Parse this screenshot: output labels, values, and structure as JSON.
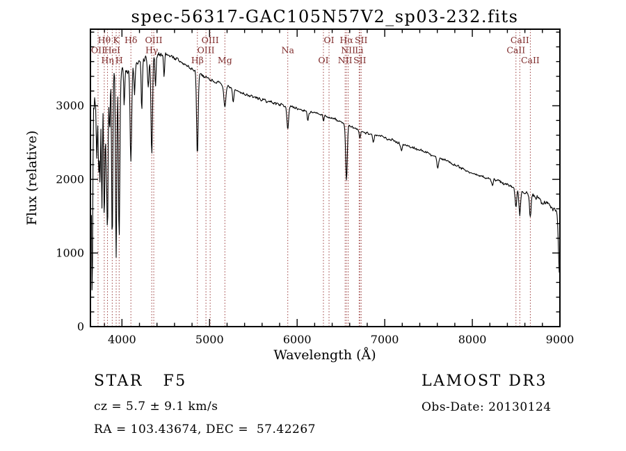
{
  "colors": {
    "background": "#ffffff",
    "spectrum": "#000000",
    "frame": "#000000",
    "text": "#000000",
    "marker_line": "#9a3b3b",
    "marker_label": "#7e2a2a"
  },
  "chart_data": {
    "type": "line",
    "title": "spec-56317-GAC105N57V2_sp03-232.fits",
    "xlabel": "Wavelength (Å)",
    "ylabel": "Flux (relative)",
    "xlim": [
      3640,
      9000
    ],
    "ylim": [
      0,
      4040
    ],
    "x_ticks": [
      4000,
      5000,
      6000,
      7000,
      8000,
      9000
    ],
    "y_ticks": [
      0,
      1000,
      2000,
      3000
    ],
    "x_minor_step": 200,
    "y_minor_step": 200,
    "grid": false,
    "sample_step": 6,
    "noise_seed": 7,
    "continuum_points": [
      [
        3650,
        2700
      ],
      [
        3680,
        3050
      ],
      [
        3720,
        3250
      ],
      [
        3760,
        3330
      ],
      [
        3820,
        3400
      ],
      [
        3900,
        3440
      ],
      [
        4000,
        3470
      ],
      [
        4100,
        3520
      ],
      [
        4200,
        3580
      ],
      [
        4300,
        3650
      ],
      [
        4400,
        3700
      ],
      [
        4520,
        3700
      ],
      [
        4600,
        3650
      ],
      [
        4700,
        3570
      ],
      [
        4800,
        3500
      ],
      [
        4900,
        3430
      ],
      [
        5000,
        3360
      ],
      [
        5100,
        3310
      ],
      [
        5200,
        3260
      ],
      [
        5300,
        3210
      ],
      [
        5400,
        3160
      ],
      [
        5500,
        3120
      ],
      [
        5600,
        3080
      ],
      [
        5700,
        3050
      ],
      [
        5800,
        3020
      ],
      [
        5900,
        2990
      ],
      [
        6000,
        2960
      ],
      [
        6100,
        2930
      ],
      [
        6200,
        2900
      ],
      [
        6300,
        2870
      ],
      [
        6400,
        2830
      ],
      [
        6500,
        2780
      ],
      [
        6600,
        2720
      ],
      [
        6700,
        2670
      ],
      [
        6800,
        2630
      ],
      [
        6900,
        2600
      ],
      [
        7000,
        2570
      ],
      [
        7100,
        2530
      ],
      [
        7200,
        2480
      ],
      [
        7300,
        2440
      ],
      [
        7400,
        2400
      ],
      [
        7500,
        2350
      ],
      [
        7600,
        2300
      ],
      [
        7700,
        2260
      ],
      [
        7800,
        2200
      ],
      [
        7900,
        2140
      ],
      [
        8000,
        2080
      ],
      [
        8100,
        2040
      ],
      [
        8200,
        2010
      ],
      [
        8300,
        1980
      ],
      [
        8400,
        1930
      ],
      [
        8500,
        1880
      ],
      [
        8600,
        1830
      ],
      [
        8700,
        1770
      ],
      [
        8800,
        1700
      ],
      [
        8900,
        1640
      ],
      [
        8960,
        1580
      ],
      [
        9000,
        1530
      ]
    ],
    "absorption_features": [
      [
        3660,
        2500,
        6
      ],
      [
        3712,
        950,
        6
      ],
      [
        3734,
        1150,
        6
      ],
      [
        3750,
        1450,
        6
      ],
      [
        3771,
        1650,
        6
      ],
      [
        3798,
        1950,
        7
      ],
      [
        3819,
        1050,
        6
      ],
      [
        3835,
        2150,
        7
      ],
      [
        3860,
        850,
        6
      ],
      [
        3889,
        2300,
        7
      ],
      [
        3934,
        2550,
        7
      ],
      [
        3968,
        2350,
        8
      ],
      [
        4026,
        500,
        6
      ],
      [
        4102,
        1300,
        9
      ],
      [
        4144,
        420,
        6
      ],
      [
        4226,
        700,
        6
      ],
      [
        4300,
        420,
        8
      ],
      [
        4340,
        1320,
        9
      ],
      [
        4383,
        480,
        6
      ],
      [
        4481,
        300,
        6
      ],
      [
        4861,
        1150,
        9
      ],
      [
        5175,
        270,
        12
      ],
      [
        5270,
        180,
        8
      ],
      [
        5893,
        310,
        9
      ],
      [
        6122,
        130,
        7
      ],
      [
        6300,
        90,
        6
      ],
      [
        6563,
        760,
        9
      ],
      [
        6717,
        110,
        7
      ],
      [
        6870,
        110,
        8
      ],
      [
        7190,
        90,
        9
      ],
      [
        7605,
        130,
        10
      ],
      [
        8230,
        90,
        9
      ],
      [
        8498,
        240,
        9
      ],
      [
        8542,
        340,
        9
      ],
      [
        8662,
        310,
        9
      ],
      [
        8995,
        790,
        12
      ]
    ],
    "noise_regions": [
      [
        3700,
        300
      ],
      [
        3780,
        230
      ],
      [
        4000,
        155
      ],
      [
        4200,
        90
      ],
      [
        4500,
        75
      ],
      [
        5000,
        52
      ],
      [
        6000,
        36
      ],
      [
        7000,
        30
      ],
      [
        8200,
        34
      ],
      [
        8700,
        46
      ],
      [
        8950,
        70
      ],
      [
        9001,
        60
      ]
    ],
    "line_markers": [
      {
        "wl": 3727,
        "label": "OII",
        "row": 2
      },
      {
        "wl": 3798,
        "label": "Hθ",
        "row": 1
      },
      {
        "wl": 3835,
        "label": "Hη",
        "row": 3
      },
      {
        "wl": 3889,
        "label": "HeI",
        "row": 2
      },
      {
        "wl": 3934,
        "label": "K",
        "row": 1
      },
      {
        "wl": 3968,
        "label": "H",
        "row": 3
      },
      {
        "wl": 4102,
        "label": "Hδ",
        "row": 1
      },
      {
        "wl": 4340,
        "label": "Hγ",
        "row": 2
      },
      {
        "wl": 4363,
        "label": "OIII",
        "row": 1
      },
      {
        "wl": 4861,
        "label": "Hβ",
        "row": 3
      },
      {
        "wl": 4959,
        "label": "OIII",
        "row": 2
      },
      {
        "wl": 5007,
        "label": "OIII",
        "row": 1
      },
      {
        "wl": 5175,
        "label": "Mg",
        "row": 3
      },
      {
        "wl": 5893,
        "label": "Na",
        "row": 2
      },
      {
        "wl": 6300,
        "label": "OI",
        "row": 3
      },
      {
        "wl": 6364,
        "label": "OI",
        "row": 1
      },
      {
        "wl": 6548,
        "label": "NII",
        "row": 3
      },
      {
        "wl": 6563,
        "label": "Hα",
        "row": 1
      },
      {
        "wl": 6583,
        "label": "NII",
        "row": 2
      },
      {
        "wl": 6708,
        "label": "Li",
        "row": 2
      },
      {
        "wl": 6716,
        "label": "SII",
        "row": 3
      },
      {
        "wl": 6731,
        "label": "SII",
        "row": 1
      },
      {
        "wl": 8498,
        "label": "CaII",
        "row": 2
      },
      {
        "wl": 8542,
        "label": "CaII",
        "row": 1
      },
      {
        "wl": 8662,
        "label": "CaII",
        "row": 3
      }
    ]
  },
  "annotations": {
    "object_type": "STAR   F5",
    "survey": "LAMOST DR3",
    "velocity": "cz = 5.7 ± 9.1 km/s",
    "obs_date": "Obs-Date: 20130124",
    "coordinates": "RA = 103.43674, DEC =  57.42267"
  }
}
